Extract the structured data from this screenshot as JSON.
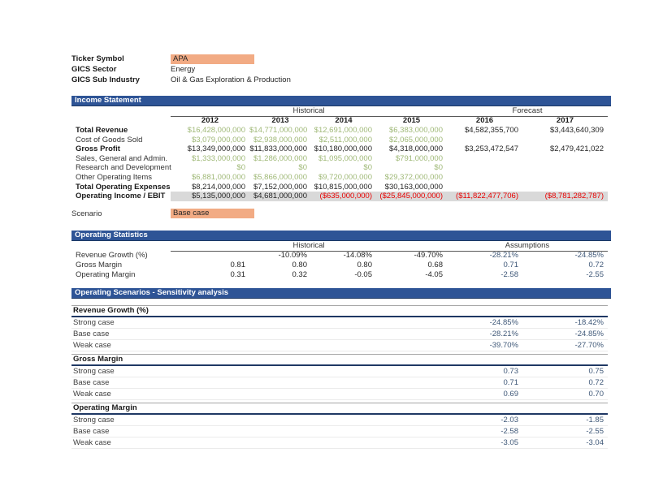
{
  "colors": {
    "section_bar": "#2E5496",
    "section_bar_border": "#1C3864",
    "input_orange": "#F2AB84",
    "value_green": "#A0B978",
    "negative_red": "#E80000",
    "assumption_blue": "#3F5878",
    "ebit_band_gray": "#D9D9D9"
  },
  "meta": {
    "rows": [
      {
        "label": "Ticker Symbol",
        "value": "APA",
        "input": true
      },
      {
        "label": "GICS Sector",
        "value": "Energy",
        "input": false
      },
      {
        "label": "GICS Sub Industry",
        "value": "Oil & Gas Exploration & Production",
        "input": false
      }
    ]
  },
  "income_statement": {
    "title": "Income Statement",
    "historical_label": "Historical",
    "forecast_label": "Forecast",
    "years": [
      "2012",
      "2013",
      "2014",
      "2015",
      "2016",
      "2017"
    ],
    "rows": [
      {
        "label": "Total Revenue",
        "bold": true,
        "band": false,
        "values": [
          "$16,428,000,000",
          "$14,771,000,000",
          "$12,691,000,000",
          "$6,383,000,000",
          "$4,582,355,700",
          "$3,443,640,309"
        ],
        "classes": [
          "g",
          "g",
          "g",
          "g",
          "k",
          "k"
        ]
      },
      {
        "label": "Cost of Goods Sold",
        "bold": false,
        "band": false,
        "values": [
          "$3,079,000,000",
          "$2,938,000,000",
          "$2,511,000,000",
          "$2,065,000,000",
          "",
          ""
        ],
        "classes": [
          "g",
          "g",
          "g",
          "g",
          "k",
          "k"
        ]
      },
      {
        "label": "Gross Profit",
        "bold": true,
        "band": false,
        "values": [
          "$13,349,000,000",
          "$11,833,000,000",
          "$10,180,000,000",
          "$4,318,000,000",
          "$3,253,472,547",
          "$2,479,421,022"
        ],
        "classes": [
          "k",
          "k",
          "k",
          "k",
          "k",
          "k"
        ]
      },
      {
        "label": "Sales, General and Admin.",
        "bold": false,
        "band": false,
        "values": [
          "$1,333,000,000",
          "$1,286,000,000",
          "$1,095,000,000",
          "$791,000,000",
          "",
          ""
        ],
        "classes": [
          "g",
          "g",
          "g",
          "g",
          "k",
          "k"
        ]
      },
      {
        "label": "Research and Development",
        "bold": false,
        "band": false,
        "values": [
          "$0",
          "$0",
          "$0",
          "$0",
          "",
          ""
        ],
        "classes": [
          "g",
          "g",
          "g",
          "g",
          "k",
          "k"
        ]
      },
      {
        "label": "Other Operating Items",
        "bold": false,
        "band": false,
        "values": [
          "$6,881,000,000",
          "$5,866,000,000",
          "$9,720,000,000",
          "$29,372,000,000",
          "",
          ""
        ],
        "classes": [
          "g",
          "g",
          "g",
          "g",
          "k",
          "k"
        ]
      },
      {
        "label": "Total Operating Expenses",
        "bold": true,
        "band": false,
        "values": [
          "$8,214,000,000",
          "$7,152,000,000",
          "$10,815,000,000",
          "$30,163,000,000",
          "",
          ""
        ],
        "classes": [
          "k",
          "k",
          "k",
          "k",
          "k",
          "k"
        ]
      },
      {
        "label": "Operating Income / EBIT",
        "bold": true,
        "band": true,
        "values": [
          "$5,135,000,000",
          "$4,681,000,000",
          "($635,000,000)",
          "($25,845,000,000)",
          "($11,822,477,706)",
          "($8,781,282,787)"
        ],
        "classes": [
          "k",
          "k",
          "r",
          "r",
          "r",
          "r"
        ]
      }
    ]
  },
  "scenario": {
    "label": "Scenario",
    "value": "Base case"
  },
  "operating_statistics": {
    "title": "Operating Statistics",
    "historical_label": "Historical",
    "assumptions_label": "Assumptions",
    "rows": [
      {
        "label": "Revenue Growth (%)",
        "values": [
          "",
          "-10.09%",
          "-14.08%",
          "-49.70%",
          "-28.21%",
          "-24.85%"
        ],
        "classes": [
          "k",
          "k",
          "k",
          "k",
          "b",
          "b"
        ]
      },
      {
        "label": "Gross Margin",
        "values": [
          "0.81",
          "0.80",
          "0.80",
          "0.68",
          "0.71",
          "0.72"
        ],
        "classes": [
          "k",
          "k",
          "k",
          "k",
          "b",
          "b"
        ]
      },
      {
        "label": "Operating Margin",
        "values": [
          "0.31",
          "0.32",
          "-0.05",
          "-4.05",
          "-2.58",
          "-2.55"
        ],
        "classes": [
          "k",
          "k",
          "k",
          "k",
          "b",
          "b"
        ]
      }
    ]
  },
  "sensitivity": {
    "title": "Operating Scenarios - Sensitivity analysis",
    "groups": [
      {
        "name": "Revenue Growth (%)",
        "rows": [
          {
            "label": "Strong case",
            "v2016": "-24.85%",
            "v2017": "-18.42%"
          },
          {
            "label": "Base case",
            "v2016": "-28.21%",
            "v2017": "-24.85%"
          },
          {
            "label": "Weak case",
            "v2016": "-39.70%",
            "v2017": "-27.70%"
          }
        ]
      },
      {
        "name": "Gross Margin",
        "rows": [
          {
            "label": "Strong case",
            "v2016": "0.73",
            "v2017": "0.75"
          },
          {
            "label": "Base case",
            "v2016": "0.71",
            "v2017": "0.72"
          },
          {
            "label": "Weak case",
            "v2016": "0.69",
            "v2017": "0.70"
          }
        ]
      },
      {
        "name": "Operating Margin",
        "rows": [
          {
            "label": "Strong case",
            "v2016": "-2.03",
            "v2017": "-1.85"
          },
          {
            "label": "Base case",
            "v2016": "-2.58",
            "v2017": "-2.55"
          },
          {
            "label": "Weak case",
            "v2016": "-3.05",
            "v2017": "-3.04"
          }
        ]
      }
    ]
  }
}
